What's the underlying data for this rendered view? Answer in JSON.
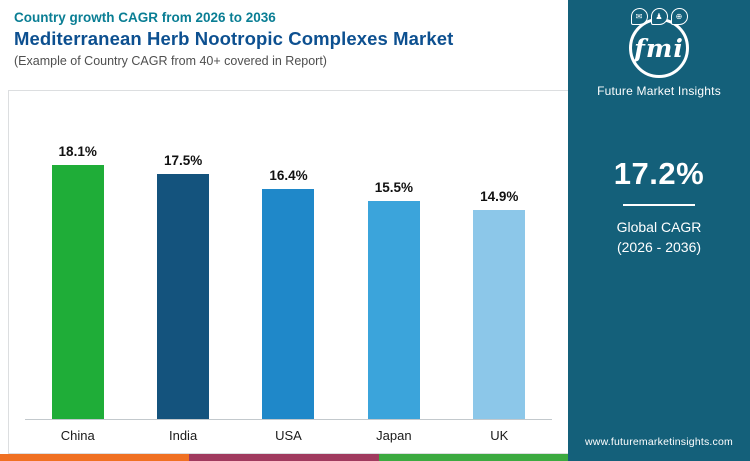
{
  "header": {
    "subtitle": "Country growth CAGR from 2026 to 2036",
    "title": "Mediterranean Herb Nootropic Complexes Market",
    "note": "(Example of Country CAGR from 40+ covered in Report)"
  },
  "sidebar": {
    "logo_text": "fmi",
    "logo_icons": [
      "mail",
      "person",
      "globe"
    ],
    "brand_name": "Future Market Insights",
    "global_cagr_value": "17.2%",
    "global_cagr_label_line1": "Global CAGR",
    "global_cagr_label_line2": "(2026 - 2036)",
    "website": "www.futuremarketinsights.com"
  },
  "chart_data": {
    "type": "bar",
    "title": "Country growth CAGR from 2026 to 2036",
    "subtitle": "Mediterranean Herb Nootropic Complexes Market",
    "categories": [
      "China",
      "India",
      "USA",
      "Japan",
      "UK"
    ],
    "values": [
      18.1,
      17.5,
      16.4,
      15.5,
      14.9
    ],
    "value_labels": [
      "18.1%",
      "17.5%",
      "16.4%",
      "15.5%",
      "14.9%"
    ],
    "bar_colors": [
      "#1fad38",
      "#14537d",
      "#1f88c9",
      "#3ba4db",
      "#8cc7e9"
    ],
    "xlabel": "",
    "ylabel": "",
    "ylim": [
      0,
      18.1
    ],
    "grid": false,
    "legend": "none"
  },
  "colors": {
    "sidebar_bg": "#14607a",
    "subtitle_text": "#0a7e94",
    "title_text": "#0d5090",
    "footer_strip": [
      "#f07022",
      "#a03a5e",
      "#3caa40"
    ]
  }
}
